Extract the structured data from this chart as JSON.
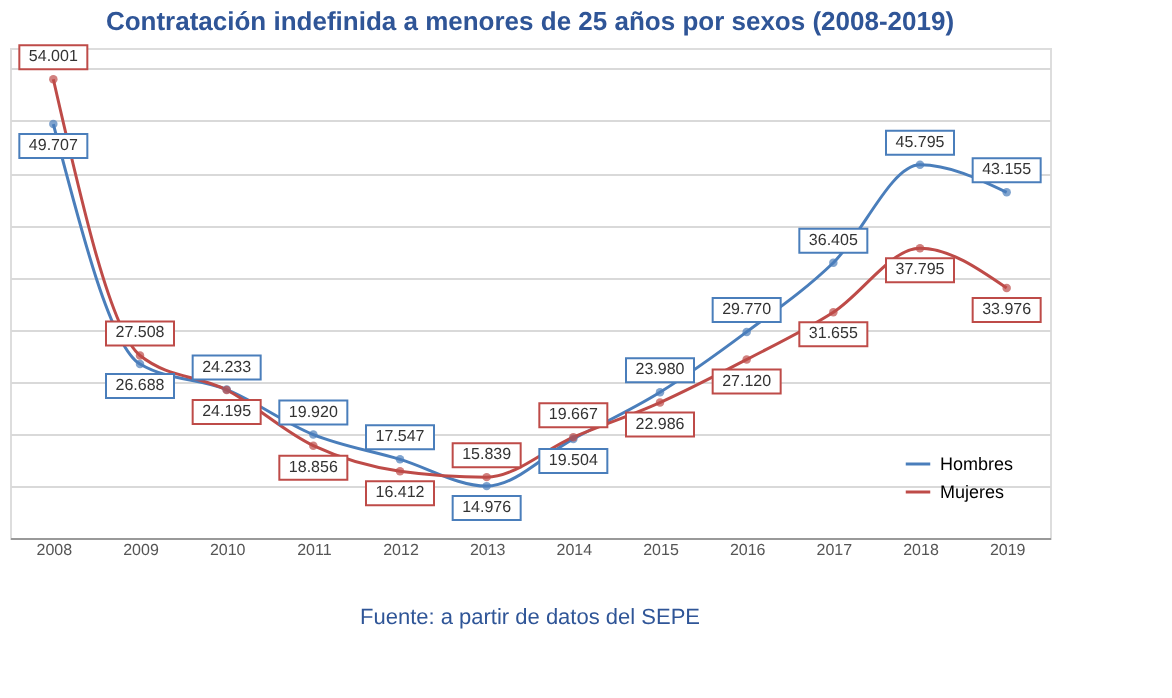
{
  "chart_data": {
    "type": "line",
    "title": "Contratación indefinida a menores de 25 años por sexos (2008-2019)",
    "categories": [
      "2008",
      "2009",
      "2010",
      "2011",
      "2012",
      "2013",
      "2014",
      "2015",
      "2016",
      "2017",
      "2018",
      "2019"
    ],
    "series": [
      {
        "name": "Hombres",
        "color": "#4a7ebb",
        "values": [
          49707,
          26688,
          24233,
          19920,
          17547,
          14976,
          19504,
          23980,
          29770,
          36405,
          45795,
          43155
        ],
        "value_labels": [
          "49.707",
          "26.688",
          "24.233",
          "19.920",
          "17.547",
          "14.976",
          "19.504",
          "23.980",
          "29.770",
          "36.405",
          "45.795",
          "43.155"
        ]
      },
      {
        "name": "Mujeres",
        "color": "#be4b48",
        "values": [
          54001,
          27508,
          24195,
          18856,
          16412,
          15839,
          19667,
          22986,
          27120,
          31655,
          37795,
          33976
        ],
        "value_labels": [
          "54.001",
          "27.508",
          "24.195",
          "18.856",
          "16.412",
          "15.839",
          "19.667",
          "22.986",
          "27.120",
          "31.655",
          "37.795",
          "33.976"
        ]
      }
    ],
    "ylim": [
      10000,
      57000
    ],
    "grid": "y",
    "tick_labels": "x",
    "legend": "bottom right",
    "marker": "circle",
    "line_style": "solid",
    "annotations": [
      "Fuente: a partir de datos del SEPE"
    ]
  }
}
